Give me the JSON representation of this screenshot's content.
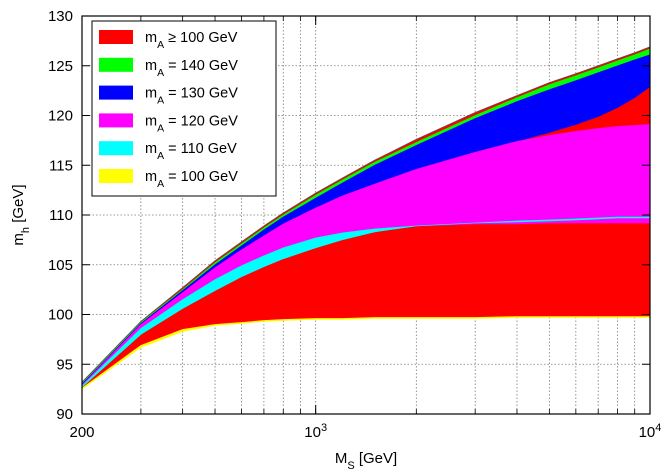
{
  "chart_data": {
    "type": "area",
    "xlabel_main": "M",
    "xlabel_sub": "S",
    "xlabel_unit": " [GeV]",
    "ylabel_main": "m",
    "ylabel_sub": "h",
    "ylabel_unit": " [GeV]",
    "xscale": "log",
    "xlim": [
      200,
      10000
    ],
    "ylim": [
      90,
      130
    ],
    "grid": true,
    "legend_position": "top-left",
    "x_ticks": [
      {
        "value": 200,
        "base": "200",
        "exp": ""
      },
      {
        "value": 1000,
        "base": "10",
        "exp": "3"
      },
      {
        "value": 10000,
        "base": "10",
        "exp": "4"
      }
    ],
    "y_ticks": [
      "90",
      "95",
      "100",
      "105",
      "110",
      "115",
      "120",
      "125",
      "130"
    ],
    "x": [
      200,
      300,
      400,
      500,
      600,
      700,
      800,
      1000,
      1200,
      1500,
      2000,
      3000,
      4000,
      5000,
      6000,
      7000,
      8000,
      9000,
      10000
    ],
    "series": [
      {
        "name": "m_A ≥ 100 GeV",
        "label_main": "m",
        "label_sub": "A",
        "label_rest": " ≥ 100 GeV",
        "color": "#ff0000",
        "lower": [
          92.6,
          96.9,
          98.5,
          99.0,
          99.2,
          99.4,
          99.5,
          99.6,
          99.6,
          99.7,
          99.7,
          99.7,
          99.8,
          99.8,
          99.8,
          99.8,
          99.8,
          99.8,
          99.8
        ],
        "upper": [
          93.2,
          99.3,
          102.7,
          105.4,
          107.3,
          108.9,
          110.2,
          112.2,
          113.7,
          115.5,
          117.6,
          120.3,
          122.0,
          123.3,
          124.2,
          125.0,
          125.7,
          126.3,
          126.9
        ]
      },
      {
        "name": "m_A = 140 GeV",
        "label_main": "m",
        "label_sub": "A",
        "label_rest": " = 140 GeV",
        "color": "#00ff00",
        "lower": [
          93.0,
          99.1,
          102.4,
          105.0,
          106.9,
          108.5,
          109.8,
          111.7,
          113.2,
          115.0,
          117.0,
          119.7,
          121.4,
          122.6,
          123.5,
          124.3,
          125.0,
          125.6,
          126.1
        ],
        "upper": [
          93.1,
          99.2,
          102.5,
          105.2,
          107.1,
          108.7,
          110.0,
          112.0,
          113.5,
          115.3,
          117.3,
          120.0,
          121.8,
          123.1,
          124.0,
          124.8,
          125.5,
          126.1,
          126.7
        ]
      },
      {
        "name": "m_A = 130 GeV",
        "label_main": "m",
        "label_sub": "A",
        "label_rest": " = 130 GeV",
        "color": "#0000ff",
        "lower": [
          92.9,
          99.0,
          102.2,
          104.7,
          106.5,
          107.9,
          109.1,
          110.7,
          111.9,
          113.1,
          114.6,
          116.3,
          117.4,
          118.3,
          119.1,
          119.9,
          120.8,
          121.8,
          122.9
        ],
        "upper": [
          93.0,
          99.1,
          102.4,
          105.0,
          106.9,
          108.5,
          109.8,
          111.7,
          113.2,
          115.0,
          117.0,
          119.7,
          121.4,
          122.6,
          123.5,
          124.3,
          125.0,
          125.6,
          126.1
        ]
      },
      {
        "name": "m_A = 120 GeV",
        "label_main": "m",
        "label_sub": "A",
        "label_rest": " = 120 GeV",
        "color": "#ff00ff",
        "lower": [
          92.8,
          98.6,
          101.5,
          103.5,
          104.9,
          105.9,
          106.7,
          107.7,
          108.2,
          108.6,
          108.9,
          109.1,
          109.1,
          109.2,
          109.2,
          109.2,
          109.2,
          109.2,
          109.2
        ],
        "upper": [
          92.9,
          99.0,
          102.2,
          104.7,
          106.5,
          107.9,
          109.1,
          110.7,
          111.9,
          113.1,
          114.6,
          116.3,
          117.4,
          118.0,
          118.4,
          118.7,
          118.9,
          119.0,
          119.1
        ]
      },
      {
        "name": "m_A = 110 GeV",
        "label_main": "m",
        "label_sub": "A",
        "label_rest": " = 110 GeV",
        "color": "#00ffff",
        "lower": [
          92.7,
          98.0,
          100.6,
          102.4,
          103.8,
          104.8,
          105.6,
          106.7,
          107.5,
          108.3,
          108.9,
          109.2,
          109.3,
          109.4,
          109.5,
          109.6,
          109.7,
          109.7,
          109.7
        ],
        "upper": [
          92.8,
          98.6,
          101.5,
          103.5,
          104.9,
          105.9,
          106.7,
          107.7,
          108.2,
          108.6,
          108.9,
          109.2,
          109.4,
          109.5,
          109.6,
          109.7,
          109.8,
          109.8,
          109.8
        ]
      },
      {
        "name": "m_A = 100 GeV",
        "label_main": "m",
        "label_sub": "A",
        "label_rest": " = 100 GeV",
        "color": "#ffff00",
        "lower": [
          92.5,
          96.7,
          98.3,
          98.9,
          99.1,
          99.3,
          99.4,
          99.5,
          99.5,
          99.6,
          99.6,
          99.6,
          99.7,
          99.7,
          99.7,
          99.7,
          99.7,
          99.7,
          99.7
        ],
        "upper": [
          92.6,
          96.9,
          98.5,
          99.0,
          99.2,
          99.4,
          99.5,
          99.6,
          99.6,
          99.7,
          99.7,
          99.7,
          99.8,
          99.8,
          99.8,
          99.8,
          99.8,
          99.8,
          99.8
        ]
      }
    ]
  }
}
